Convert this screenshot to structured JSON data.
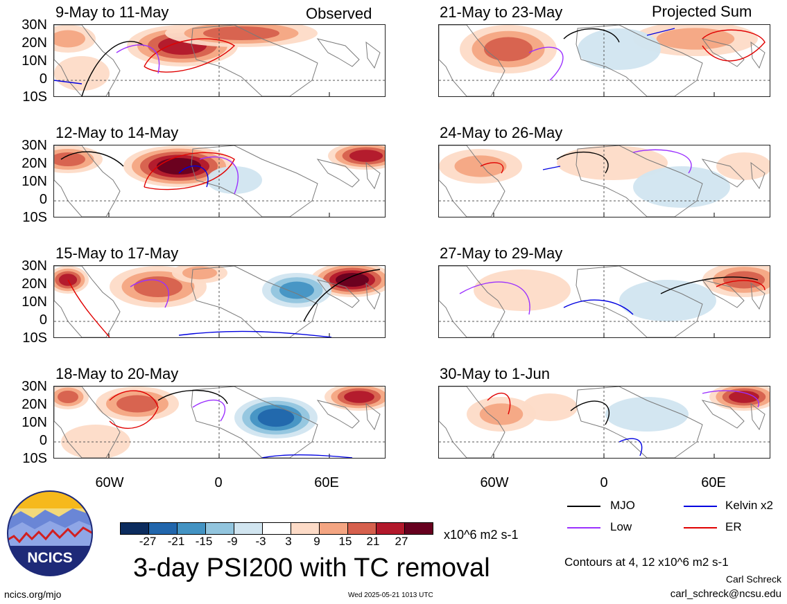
{
  "header": {
    "observed_label": "Observed",
    "projected_label": "Projected Sum"
  },
  "panels": [
    {
      "id": "o1",
      "title": "9-May to 11-May"
    },
    {
      "id": "o2",
      "title": "12-May to 14-May"
    },
    {
      "id": "o3",
      "title": "15-May to 17-May"
    },
    {
      "id": "o4",
      "title": "18-May to 20-May"
    },
    {
      "id": "p1",
      "title": "21-May to 23-May"
    },
    {
      "id": "p2",
      "title": "24-May to 26-May"
    },
    {
      "id": "p3",
      "title": "27-May to 29-May"
    },
    {
      "id": "p4",
      "title": "30-May to 1-Jun"
    }
  ],
  "axes": {
    "lat_labels": [
      "30N",
      "20N",
      "10N",
      "0",
      "10S"
    ],
    "lon_labels": [
      "60W",
      "0",
      "60E"
    ]
  },
  "colorbar": {
    "colors": [
      "#0c2c5e",
      "#2166ac",
      "#4393c3",
      "#92c5de",
      "#d1e5f0",
      "#ffffff",
      "#fddbc7",
      "#f4a582",
      "#d6604d",
      "#b2182b",
      "#67001f"
    ],
    "ticks": [
      "-27",
      "-21",
      "-15",
      "-9",
      "-3",
      "3",
      "9",
      "15",
      "21",
      "27"
    ],
    "units": "x10^6 m2 s-1"
  },
  "legend": {
    "items": [
      {
        "label": "MJO",
        "color": "#000000"
      },
      {
        "label": "Kelvin x2",
        "color": "#0000e0"
      },
      {
        "label": "Low",
        "color": "#9b30ff"
      },
      {
        "label": "ER",
        "color": "#e00000"
      }
    ],
    "contours_note": "Contours at 4, 12 x10^6 m2 s-1"
  },
  "footer": {
    "main_title": "3-day PSI200 with TC removal",
    "logo_text": "NCICS",
    "website": "ncics.org/mjo",
    "timestamp": "Wed 2025-05-21 1013 UTC",
    "author": "Carl Schreck",
    "email": "carl_schreck@ncsu.edu"
  }
}
